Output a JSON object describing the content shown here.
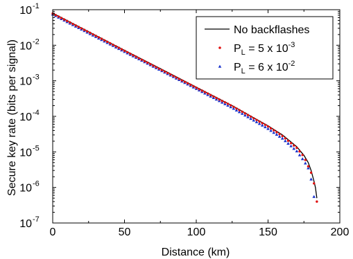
{
  "chart_data": {
    "type": "line",
    "title": "",
    "xlabel": "Distance (km)",
    "ylabel": "Secure key rate (bits per signal)",
    "xlim": [
      0,
      200
    ],
    "ylim_log10": [
      -7,
      -1
    ],
    "y_scale": "log",
    "x_ticks": [
      0,
      50,
      100,
      150,
      200
    ],
    "x_tick_labels": [
      "0",
      "50",
      "100",
      "150",
      "200"
    ],
    "y_ticks_exp": [
      -7,
      -6,
      -5,
      -4,
      -3,
      -2,
      -1
    ],
    "y_tick_base": "10",
    "grid": false,
    "legend_position": "top-right",
    "colors": {
      "line": "#000000",
      "series1": "#e01010",
      "series2": "#1a33cc",
      "axis": "#000000"
    },
    "series": [
      {
        "name": "No backflashes",
        "style": "line",
        "x": [
          0,
          25,
          50,
          75,
          100,
          125,
          150,
          160,
          170,
          175,
          178,
          180,
          182,
          183,
          184
        ],
        "y": [
          0.08,
          0.024,
          0.0072,
          0.0022,
          0.00066,
          0.0002,
          5.4e-05,
          3e-05,
          1.4e-05,
          8e-06,
          5e-06,
          3e-06,
          1.5e-06,
          1e-06,
          5e-07
        ]
      },
      {
        "name": "P",
        "name_subscript": "L",
        "name_rest": " = 5 x 10",
        "name_superscript": "-3",
        "style": "markers",
        "marker": "circle",
        "x": [
          0,
          25,
          50,
          75,
          100,
          125,
          150,
          160,
          170,
          175,
          180,
          182,
          184
        ],
        "y": [
          0.078,
          0.0235,
          0.007,
          0.0021,
          0.00064,
          0.000195,
          5.2e-05,
          2.8e-05,
          1.3e-05,
          7.3e-06,
          2.6e-06,
          1.3e-06,
          4e-07
        ]
      },
      {
        "name": "P",
        "name_subscript": "L",
        "name_rest": " = 6 x 10",
        "name_superscript": "-2",
        "style": "markers",
        "marker": "triangle",
        "x": [
          0,
          25,
          50,
          75,
          100,
          125,
          150,
          160,
          170,
          175,
          178,
          180,
          182
        ],
        "y": [
          0.074,
          0.022,
          0.0066,
          0.002,
          0.0006,
          0.000175,
          4.5e-05,
          2.4e-05,
          1.05e-05,
          5.6e-06,
          3.5e-06,
          1.7e-06,
          5.5e-07
        ]
      }
    ]
  }
}
